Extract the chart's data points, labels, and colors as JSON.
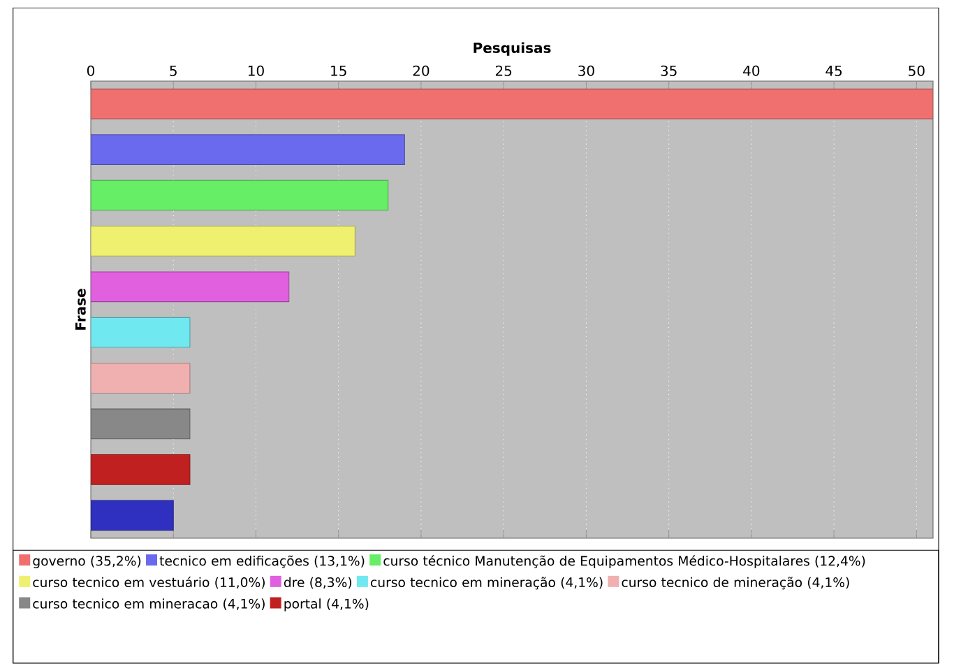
{
  "chart_data": {
    "type": "bar",
    "orientation": "horizontal",
    "xlabel": "Pesquisas",
    "ylabel": "Frase",
    "categories": [
      null,
      null,
      null,
      null,
      null,
      null,
      null,
      null,
      null,
      null
    ],
    "series": [
      {
        "name": "governo (35,2%)",
        "color": "#f07070",
        "values": [
          51,
          null,
          null,
          null,
          null,
          null,
          null,
          null,
          null,
          null
        ]
      },
      {
        "name": "tecnico em edificações (13,1%)",
        "color": "#6a6aee",
        "values": [
          null,
          19,
          null,
          null,
          null,
          null,
          null,
          null,
          null,
          null
        ]
      },
      {
        "name": "curso técnico Manutenção de Equipamentos Médico-Hospitalares (12,4%)",
        "color": "#66ee66",
        "values": [
          null,
          null,
          18,
          null,
          null,
          null,
          null,
          null,
          null,
          null
        ]
      },
      {
        "name": "curso tecnico em vestuário (11,0%)",
        "color": "#f0f070",
        "values": [
          null,
          null,
          null,
          16,
          null,
          null,
          null,
          null,
          null,
          null
        ]
      },
      {
        "name": "dre (8,3%)",
        "color": "#e060e0",
        "values": [
          null,
          null,
          null,
          null,
          12,
          null,
          null,
          null,
          null,
          null
        ]
      },
      {
        "name": "curso tecnico em mineração (4,1%)",
        "color": "#70e8f0",
        "values": [
          null,
          null,
          null,
          null,
          null,
          6,
          null,
          null,
          null,
          null
        ]
      },
      {
        "name": "curso tecnico de mineração (4,1%)",
        "color": "#f0b0b0",
        "values": [
          null,
          null,
          null,
          null,
          null,
          null,
          6,
          null,
          null,
          null
        ]
      },
      {
        "name": "curso tecnico em mineracao (4,1%)",
        "color": "#888888",
        "values": [
          null,
          null,
          null,
          null,
          null,
          null,
          null,
          6,
          null,
          null
        ]
      },
      {
        "name": "portal (4,1%)",
        "color": "#c02020",
        "values": [
          null,
          null,
          null,
          null,
          null,
          null,
          null,
          null,
          6,
          null
        ]
      },
      {
        "color": "#3030c0",
        "values": [
          null,
          null,
          null,
          null,
          null,
          null,
          null,
          null,
          null,
          5
        ]
      }
    ],
    "xlim": [
      0,
      51
    ],
    "xticks": [
      0,
      5,
      10,
      15,
      20,
      25,
      30,
      35,
      40,
      45,
      50
    ],
    "grid": "x",
    "legend": "bottom"
  }
}
